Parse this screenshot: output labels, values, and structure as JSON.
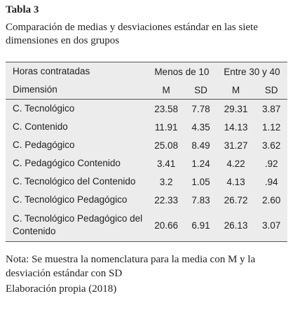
{
  "header": {
    "title": "Tabla 3",
    "caption": "Comparación de medias y desviaciones estándar en las siete dimensiones en dos grupos"
  },
  "table": {
    "group_header": [
      "Horas contratadas",
      "Menos de 10",
      "Entre 30 y 40"
    ],
    "column_header": [
      "Dimensión",
      "M",
      "SD",
      "M",
      "SD"
    ],
    "rows": [
      [
        "C. Tecnológico",
        "23.58",
        "7.78",
        "29.31",
        "3.87"
      ],
      [
        "C. Contenido",
        "11.91",
        "4.35",
        "14.13",
        "1.12"
      ],
      [
        "C. Pedagógico",
        "25.08",
        "8.49",
        "31.27",
        "3.62"
      ],
      [
        "C. Pedagógico Contenido",
        "3.41",
        "1.24",
        "4.22",
        ".92"
      ],
      [
        "C. Tecnológico del Contenido",
        "3.2",
        "1.05",
        "4.13",
        ".94"
      ],
      [
        "C. Tecnológico Pedagógico",
        "22.33",
        "7.83",
        "26.72",
        "2.60"
      ],
      [
        "C. Tecnológico Pedagógico del Contenido",
        "20.66",
        "6.91",
        "26.13",
        "3.07"
      ]
    ]
  },
  "footer": {
    "note": "Nota: Se muestra la nomenclatura para la media con M y la desviación estándar con SD",
    "source": "Elaboración propia (2018)"
  }
}
